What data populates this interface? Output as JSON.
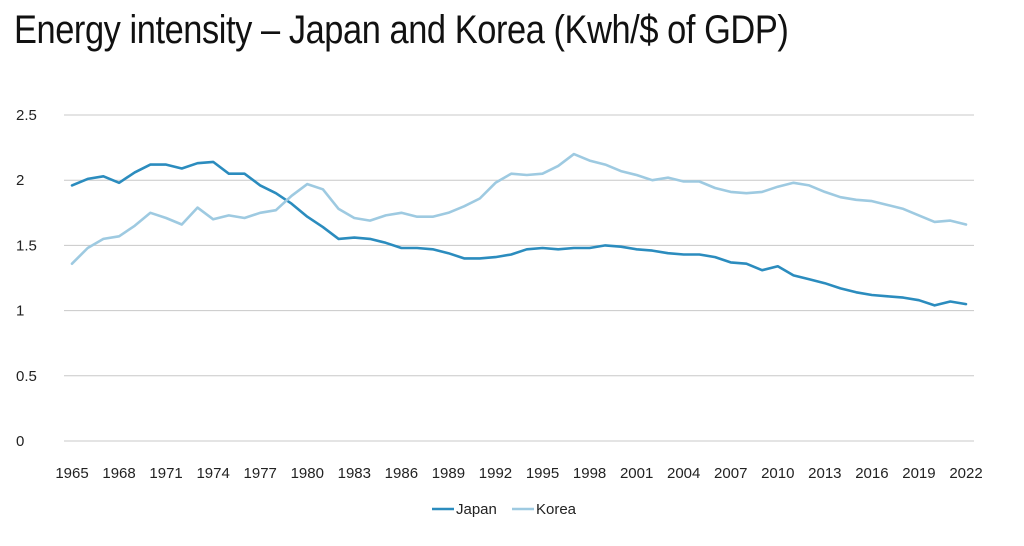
{
  "title": "Energy intensity – Japan and Korea (Kwh/$ of GDP)",
  "chart_data": {
    "type": "line",
    "title": "Energy intensity – Japan and Korea (Kwh/$ of GDP)",
    "ylim": [
      0,
      2.5
    ],
    "y_ticks": [
      "0",
      "0.5",
      "1",
      "1.5",
      "2",
      "2.5"
    ],
    "x_ticks": [
      "1965",
      "1968",
      "1971",
      "1974",
      "1977",
      "1980",
      "1983",
      "1986",
      "1989",
      "1992",
      "1995",
      "1998",
      "2001",
      "2004",
      "2007",
      "2010",
      "2013",
      "2016",
      "2019",
      "2022"
    ],
    "grid": "horizontal",
    "legend": "bottom-center",
    "x": [
      1965,
      1966,
      1967,
      1968,
      1969,
      1970,
      1971,
      1972,
      1973,
      1974,
      1975,
      1976,
      1977,
      1978,
      1979,
      1980,
      1981,
      1982,
      1983,
      1984,
      1985,
      1986,
      1987,
      1988,
      1989,
      1990,
      1991,
      1992,
      1993,
      1994,
      1995,
      1996,
      1997,
      1998,
      1999,
      2000,
      2001,
      2002,
      2003,
      2004,
      2005,
      2006,
      2007,
      2008,
      2009,
      2010,
      2011,
      2012,
      2013,
      2014,
      2015,
      2016,
      2017,
      2018,
      2019,
      2020,
      2021,
      2022
    ],
    "series": [
      {
        "name": "Japan",
        "color": "#2b8cbe",
        "values": [
          1.96,
          2.01,
          2.03,
          1.98,
          2.06,
          2.12,
          2.12,
          2.09,
          2.13,
          2.14,
          2.05,
          2.05,
          1.96,
          1.9,
          1.82,
          1.72,
          1.64,
          1.55,
          1.56,
          1.55,
          1.52,
          1.48,
          1.48,
          1.47,
          1.44,
          1.4,
          1.4,
          1.41,
          1.43,
          1.47,
          1.48,
          1.47,
          1.48,
          1.48,
          1.5,
          1.49,
          1.47,
          1.46,
          1.44,
          1.43,
          1.43,
          1.41,
          1.37,
          1.36,
          1.31,
          1.34,
          1.27,
          1.24,
          1.21,
          1.17,
          1.14,
          1.12,
          1.11,
          1.1,
          1.08,
          1.04,
          1.07,
          1.05
        ]
      },
      {
        "name": "Korea",
        "color": "#9ecae1",
        "values": [
          1.36,
          1.48,
          1.55,
          1.57,
          1.65,
          1.75,
          1.71,
          1.66,
          1.79,
          1.7,
          1.73,
          1.71,
          1.75,
          1.77,
          1.88,
          1.97,
          1.93,
          1.78,
          1.71,
          1.69,
          1.73,
          1.75,
          1.72,
          1.72,
          1.75,
          1.8,
          1.86,
          1.98,
          2.05,
          2.04,
          2.05,
          2.11,
          2.2,
          2.15,
          2.12,
          2.07,
          2.04,
          2.0,
          2.02,
          1.99,
          1.99,
          1.94,
          1.91,
          1.9,
          1.91,
          1.95,
          1.98,
          1.96,
          1.91,
          1.87,
          1.85,
          1.84,
          1.81,
          1.78,
          1.73,
          1.68,
          1.69,
          1.66
        ]
      }
    ]
  }
}
